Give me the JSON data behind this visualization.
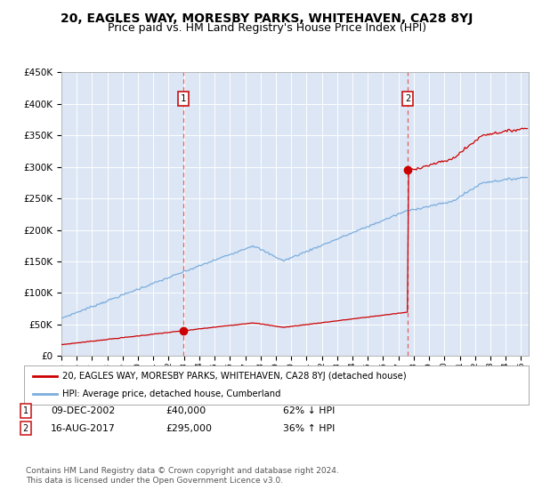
{
  "title": "20, EAGLES WAY, MORESBY PARKS, WHITEHAVEN, CA28 8YJ",
  "subtitle": "Price paid vs. HM Land Registry's House Price Index (HPI)",
  "title_fontsize": 10,
  "subtitle_fontsize": 9,
  "bg_color": "#dce6f5",
  "hpi_color": "#7aadde",
  "property_color": "#cc0000",
  "dashed_color": "#e06060",
  "sale1_date": 2002.94,
  "sale1_price": 40000,
  "sale2_date": 2017.62,
  "sale2_price": 295000,
  "ylim_max": 450000,
  "ylim_min": 0,
  "xlim_min": 1995.0,
  "xlim_max": 2025.5,
  "legend_label1": "20, EAGLES WAY, MORESBY PARKS, WHITEHAVEN, CA28 8YJ (detached house)",
  "legend_label2": "HPI: Average price, detached house, Cumberland",
  "note1_date": "09-DEC-2002",
  "note1_price": "£40,000",
  "note1_hpi": "62% ↓ HPI",
  "note2_date": "16-AUG-2017",
  "note2_price": "£295,000",
  "note2_hpi": "36% ↑ HPI",
  "footer": "Contains HM Land Registry data © Crown copyright and database right 2024.\nThis data is licensed under the Open Government Licence v3.0.",
  "ytick_labels": [
    "£0",
    "£50K",
    "£100K",
    "£150K",
    "£200K",
    "£250K",
    "£300K",
    "£350K",
    "£400K",
    "£450K"
  ],
  "ytick_vals": [
    0,
    50000,
    100000,
    150000,
    200000,
    250000,
    300000,
    350000,
    400000,
    450000
  ]
}
